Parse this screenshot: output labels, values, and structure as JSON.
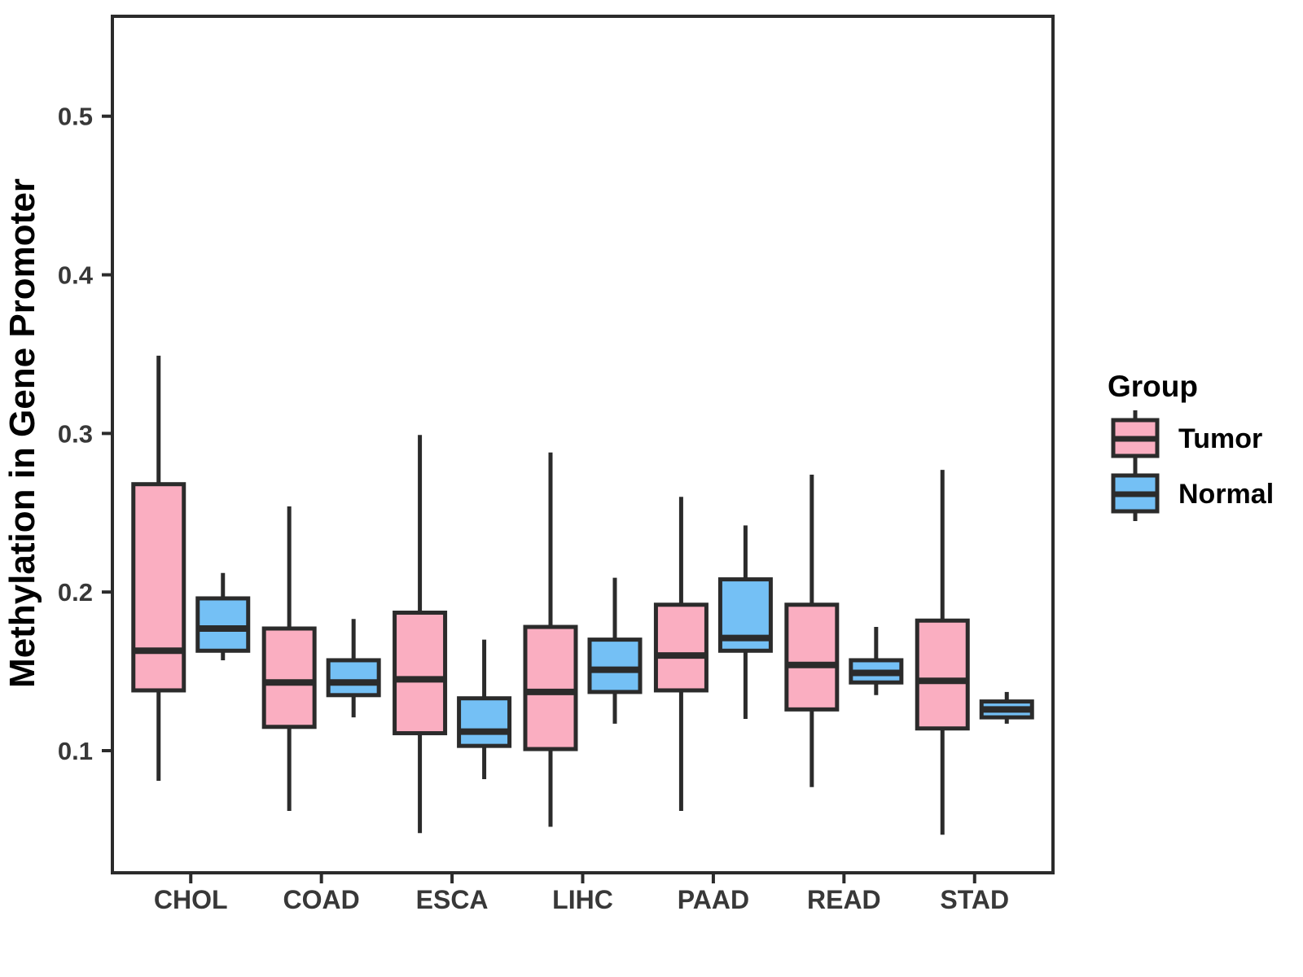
{
  "chart_data": {
    "type": "boxplot",
    "title": "",
    "xlabel": "",
    "ylabel": "Methylation in Gene Promoter",
    "categories": [
      "CHOL",
      "COAD",
      "ESCA",
      "LIHC",
      "PAAD",
      "READ",
      "STAD"
    ],
    "y_ticks": [
      0.1,
      0.2,
      0.3,
      0.4,
      0.5
    ],
    "y_tick_labels": [
      "0.1",
      "0.2",
      "0.3",
      "0.4",
      "0.5"
    ],
    "ylim": [
      0.023,
      0.563
    ],
    "grid": "off",
    "legend": {
      "title": "Group",
      "position": "right",
      "entries": [
        {
          "label": "Tumor",
          "color": "#FAAEC1"
        },
        {
          "label": "Normal",
          "color": "#74C0F5"
        }
      ]
    },
    "box_stroke_color": "#2B2B2B",
    "tick_label_color": "#383838",
    "series": [
      {
        "name": "Tumor",
        "color": "#FAAEC1",
        "boxes": [
          {
            "category": "CHOL",
            "lo": 0.081,
            "q1": 0.138,
            "med": 0.163,
            "q3": 0.268,
            "hi": 0.349
          },
          {
            "category": "COAD",
            "lo": 0.062,
            "q1": 0.115,
            "med": 0.143,
            "q3": 0.177,
            "hi": 0.254
          },
          {
            "category": "ESCA",
            "lo": 0.048,
            "q1": 0.111,
            "med": 0.145,
            "q3": 0.187,
            "hi": 0.299
          },
          {
            "category": "LIHC",
            "lo": 0.052,
            "q1": 0.101,
            "med": 0.137,
            "q3": 0.178,
            "hi": 0.288
          },
          {
            "category": "PAAD",
            "lo": 0.062,
            "q1": 0.138,
            "med": 0.16,
            "q3": 0.192,
            "hi": 0.26
          },
          {
            "category": "READ",
            "lo": 0.077,
            "q1": 0.126,
            "med": 0.154,
            "q3": 0.192,
            "hi": 0.274
          },
          {
            "category": "STAD",
            "lo": 0.047,
            "q1": 0.114,
            "med": 0.144,
            "q3": 0.182,
            "hi": 0.277
          }
        ]
      },
      {
        "name": "Normal",
        "color": "#74C0F5",
        "boxes": [
          {
            "category": "CHOL",
            "lo": 0.157,
            "q1": 0.163,
            "med": 0.177,
            "q3": 0.196,
            "hi": 0.212
          },
          {
            "category": "COAD",
            "lo": 0.121,
            "q1": 0.135,
            "med": 0.143,
            "q3": 0.157,
            "hi": 0.183
          },
          {
            "category": "ESCA",
            "lo": 0.082,
            "q1": 0.103,
            "med": 0.112,
            "q3": 0.133,
            "hi": 0.17
          },
          {
            "category": "LIHC",
            "lo": 0.117,
            "q1": 0.137,
            "med": 0.151,
            "q3": 0.17,
            "hi": 0.209
          },
          {
            "category": "PAAD",
            "lo": 0.12,
            "q1": 0.163,
            "med": 0.171,
            "q3": 0.208,
            "hi": 0.242
          },
          {
            "category": "READ",
            "lo": 0.135,
            "q1": 0.143,
            "med": 0.149,
            "q3": 0.157,
            "hi": 0.178
          },
          {
            "category": "STAD",
            "lo": 0.117,
            "q1": 0.121,
            "med": 0.126,
            "q3": 0.131,
            "hi": 0.137
          }
        ]
      }
    ]
  }
}
